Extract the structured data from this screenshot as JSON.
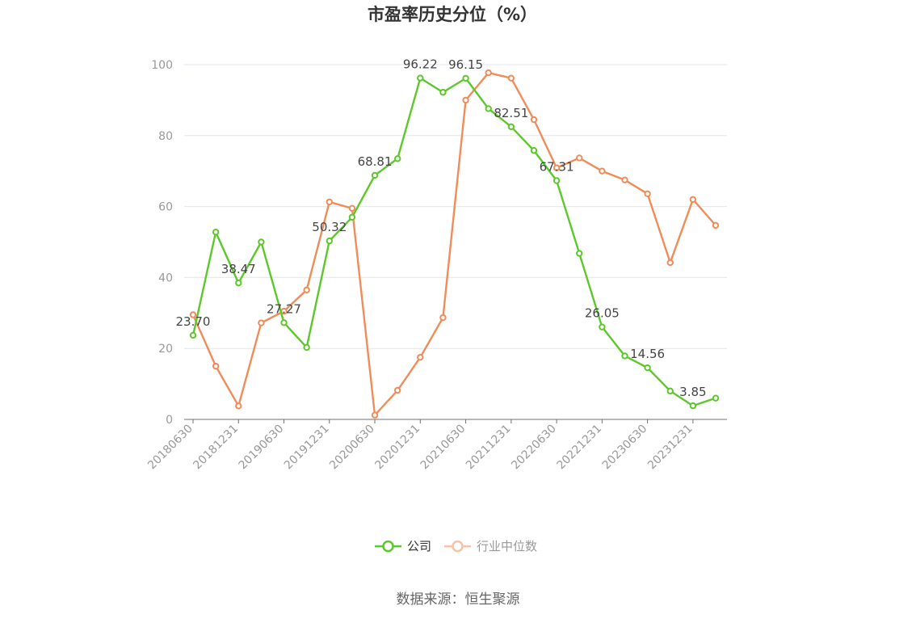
{
  "chart_data": {
    "type": "line",
    "title": "市盈率历史分位（%）",
    "source": "数据来源：恒生聚源",
    "ylim": [
      0,
      100
    ],
    "yticks": [
      "0",
      "20",
      "40",
      "60",
      "80",
      "100"
    ],
    "ytick_values": [
      0,
      20,
      40,
      60,
      80,
      100
    ],
    "x": [
      "20180630",
      "20180930",
      "20181231",
      "20190331",
      "20190630",
      "20190930",
      "20191231",
      "20200331",
      "20200630",
      "20200930",
      "20201231",
      "20210331",
      "20210630",
      "20210930",
      "20211231",
      "20220331",
      "20220630",
      "20220930",
      "20221231",
      "20230331",
      "20230630",
      "20230930",
      "20231231",
      "20240331"
    ],
    "xtick_labels": [
      "20180630",
      "",
      "20181231",
      "",
      "20190630",
      "",
      "20191231",
      "",
      "20200630",
      "",
      "20201231",
      "",
      "20210630",
      "",
      "20211231",
      "",
      "20220630",
      "",
      "20221231",
      "",
      "20230630",
      "",
      "20231231",
      ""
    ],
    "grid": true,
    "legend_position": "bottom",
    "series": [
      {
        "name": "公司",
        "color": "#5cc82a",
        "values": [
          23.7,
          52.8,
          38.47,
          50.0,
          27.27,
          20.3,
          50.32,
          57.0,
          68.81,
          73.5,
          96.22,
          92.2,
          96.15,
          87.6,
          82.51,
          75.8,
          67.31,
          46.8,
          26.05,
          17.9,
          14.56,
          8.0,
          3.85,
          6.0
        ],
        "labels": [
          "23.70",
          "",
          "38.47",
          "",
          "27.27",
          "",
          "50.32",
          "",
          "68.81",
          "",
          "96.22",
          "",
          "96.15",
          "",
          "82.51",
          "",
          "67.31",
          "",
          "26.05",
          "",
          "14.56",
          "",
          "3.85",
          ""
        ]
      },
      {
        "name": "行业中位数",
        "color": "#f08c5a",
        "values": [
          29.5,
          15.0,
          3.8,
          27.2,
          30.5,
          36.5,
          61.3,
          59.5,
          1.2,
          8.2,
          17.5,
          28.7,
          90.0,
          97.7,
          96.2,
          84.5,
          70.9,
          73.7,
          70.0,
          67.5,
          63.6,
          44.2,
          62.0,
          54.7
        ],
        "labels": []
      }
    ]
  }
}
